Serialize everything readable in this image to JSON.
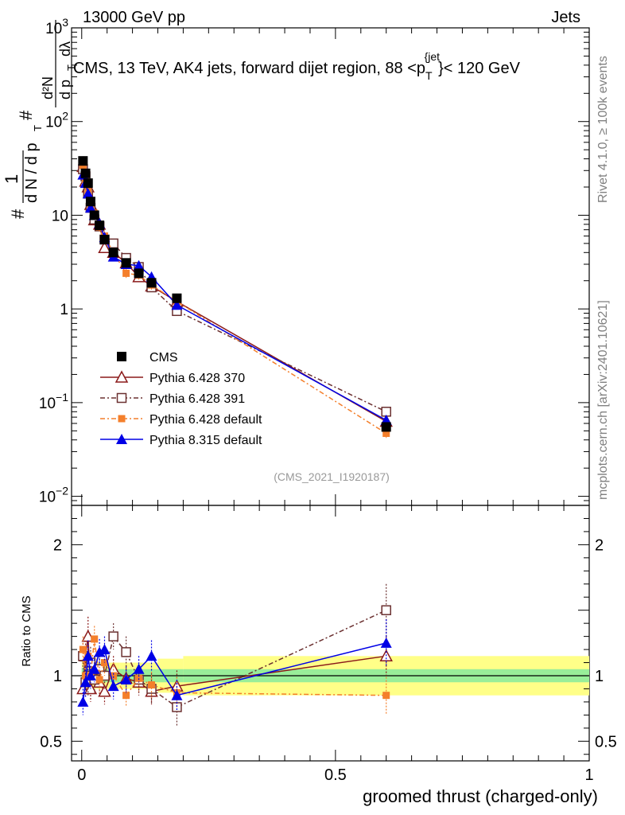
{
  "header": {
    "left": "13000 GeV pp",
    "right": "Jets",
    "side_rivet": "Rivet 4.1.0, ≥ 100k events",
    "side_mcplots": "mcplots.cern.ch [arXiv:2401.10621]",
    "analysis_tag": "(CMS_2021_I1920187)"
  },
  "chart_data": {
    "type": "line",
    "title": "CMS, 13 TeV, AK4 jets, forward dijet region, 88 <p_T^{jet}< 120 GeV",
    "title_parts": {
      "before": "CMS, 13 TeV, AK4 jets, forward dijet region, 88 <p",
      "sup": "{jet",
      "sub": "T",
      "after": "}< 120 GeV"
    },
    "ylabel_main": "1/N dN/dp_T d²N/dp_T dλ",
    "ylabel_main_parts": {
      "hash1": "#",
      "one": "1",
      "dn": "d N / d p",
      "t1": "T",
      "hash2": "#",
      "d2n": "d²N",
      "dp": "d p",
      "t2": "T",
      "dlambda": "dλ"
    },
    "ylabel_ratio": "Ratio to CMS",
    "xlabel": "groomed thrust (charged-only)",
    "xlim": [
      -0.02,
      1.0
    ],
    "ylim_main": [
      0.008,
      1000
    ],
    "ylim_ratio": [
      0.35,
      2.3
    ],
    "y_ticks_main": [
      {
        "value": 1000,
        "base": "10",
        "exp": "3"
      },
      {
        "value": 100,
        "base": "10",
        "exp": "2"
      },
      {
        "value": 10,
        "base": "10",
        "exp": ""
      },
      {
        "value": 1,
        "base": "1",
        "exp": ""
      },
      {
        "value": 0.1,
        "base": "10",
        "exp": "−1"
      },
      {
        "value": 0.01,
        "base": "10",
        "exp": "−2"
      }
    ],
    "y_ticks_ratio": [
      {
        "value": 2,
        "label": "2"
      },
      {
        "value": 1,
        "label": "1"
      },
      {
        "value": 0.5,
        "label": "0.5"
      }
    ],
    "x_ticks": [
      {
        "value": 0,
        "label": "0"
      },
      {
        "value": 0.5,
        "label": "0.5"
      },
      {
        "value": 1,
        "label": "1"
      }
    ],
    "x_bins": [
      0.0025,
      0.0075,
      0.0125,
      0.0175,
      0.025,
      0.035,
      0.045,
      0.0625,
      0.0875,
      0.1125,
      0.1375,
      0.1875,
      0.6
    ],
    "bin_edges": [
      0,
      0.005,
      0.01,
      0.015,
      0.02,
      0.03,
      0.04,
      0.05,
      0.075,
      0.1,
      0.125,
      0.15,
      0.2,
      1.0
    ],
    "cms_values": [
      38,
      28,
      22,
      14,
      10,
      7.8,
      5.5,
      4,
      3.1,
      2.4,
      1.9,
      1.3,
      0.055
    ],
    "ratio_bands": {
      "stat_half_width": [
        0.06,
        0.05,
        0.05,
        0.05,
        0.05,
        0.05,
        0.05,
        0.05,
        0.05,
        0.05,
        0.05,
        0.05,
        0.05
      ],
      "total_half_width": [
        0.12,
        0.1,
        0.1,
        0.1,
        0.1,
        0.1,
        0.1,
        0.1,
        0.1,
        0.1,
        0.1,
        0.13,
        0.15
      ]
    },
    "series": [
      {
        "name": "CMS",
        "color": "#000000",
        "marker": "square-filled",
        "dash": "",
        "values": [
          38,
          28,
          22,
          14,
          10,
          7.8,
          5.5,
          4,
          3.1,
          2.4,
          1.9,
          1.3,
          0.055
        ],
        "ratio": [
          1,
          1,
          1,
          1,
          1,
          1,
          1,
          1,
          1,
          1,
          1,
          1,
          1
        ],
        "ratio_err": [
          0,
          0,
          0,
          0,
          0,
          0,
          0,
          0,
          0,
          0,
          0,
          0,
          0
        ],
        "draw_line": false
      },
      {
        "name": "Pythia 6.428 370",
        "color": "#8b1a1a",
        "marker": "triangle-open",
        "dash": "",
        "values": [
          33,
          23,
          20,
          13,
          8.9,
          8.0,
          4.5,
          4.0,
          3.1,
          2.2,
          1.75,
          1.2,
          0.063
        ],
        "ratio": [
          0.9,
          1.15,
          1.3,
          0.9,
          1.05,
          0.95,
          0.88,
          1.05,
          0.98,
          0.95,
          0.88,
          0.92,
          1.15
        ],
        "ratio_err": [
          0.1,
          0.12,
          0.15,
          0.1,
          0.1,
          0.09,
          0.1,
          0.1,
          0.1,
          0.1,
          0.1,
          0.12,
          0.15
        ],
        "draw_line": true
      },
      {
        "name": "Pythia 6.428 391",
        "color": "#6b3030",
        "marker": "square-open",
        "dash": "6,3,2,3",
        "values": [
          31,
          26,
          17,
          12,
          9.0,
          7.6,
          5.5,
          5.0,
          3.5,
          2.8,
          1.7,
          0.95,
          0.08
        ],
        "ratio": [
          1.15,
          0.95,
          1.0,
          1.1,
          0.97,
          1.05,
          1.0,
          1.3,
          1.18,
          0.97,
          0.9,
          0.76,
          1.5
        ],
        "ratio_err": [
          0.1,
          0.12,
          0.15,
          0.12,
          0.1,
          0.1,
          0.1,
          0.1,
          0.12,
          0.1,
          0.12,
          0.14,
          0.2
        ],
        "draw_line": true
      },
      {
        "name": "Pythia 6.428 default",
        "color": "#f47f2b",
        "marker": "square-filled-small",
        "dash": "6,3,2,3",
        "values": [
          34,
          24,
          18,
          13,
          10.5,
          7.5,
          6.0,
          4.0,
          2.4,
          2.3,
          1.8,
          1.2,
          0.047
        ],
        "ratio": [
          1.2,
          1.0,
          1.15,
          1.0,
          1.28,
          0.97,
          1.1,
          1.0,
          0.85,
          0.98,
          0.93,
          0.87,
          0.85
        ],
        "ratio_err": [
          0.1,
          0.12,
          0.12,
          0.1,
          0.1,
          0.1,
          0.1,
          0.1,
          0.08,
          0.1,
          0.1,
          0.12,
          0.14
        ],
        "draw_line": true
      },
      {
        "name": "Pythia 8.315 default",
        "color": "#0000e6",
        "marker": "triangle-filled",
        "dash": "",
        "values": [
          27,
          22,
          17,
          12,
          10,
          8.2,
          5.8,
          3.6,
          3.0,
          2.9,
          2.2,
          1.1,
          0.065
        ],
        "ratio": [
          0.8,
          0.95,
          1.15,
          1.0,
          1.05,
          1.18,
          1.2,
          0.92,
          0.97,
          1.05,
          1.15,
          0.85,
          1.25
        ],
        "ratio_err": [
          0.1,
          0.12,
          0.12,
          0.1,
          0.1,
          0.1,
          0.1,
          0.1,
          0.1,
          0.1,
          0.12,
          0.12,
          0.18
        ],
        "draw_line": true
      }
    ],
    "legend_position": "lower-left"
  }
}
